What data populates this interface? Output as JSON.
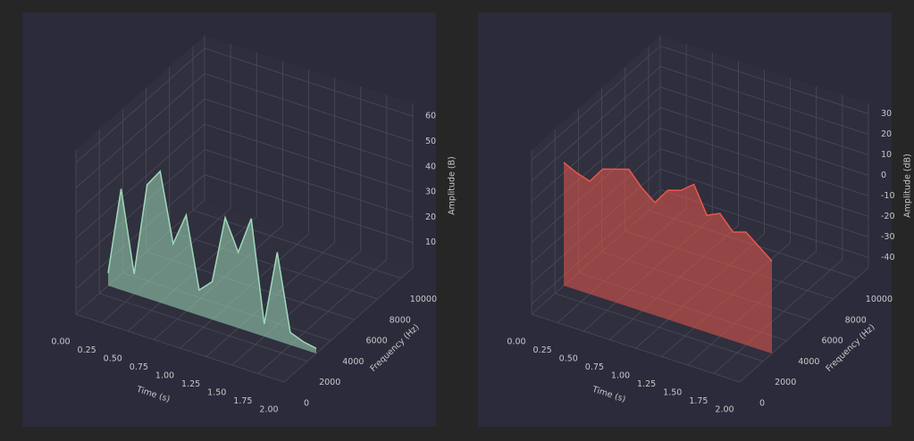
{
  "chart_data": [
    {
      "type": "surface3d",
      "xlabel": "Time (s)",
      "ylabel": "Frequency (Hz)",
      "zlabel": "Amplitude (B)",
      "xlim": [
        0,
        2
      ],
      "ylim": [
        0,
        11000
      ],
      "zlim": [
        0,
        65
      ],
      "xticks": [
        {
          "value": 0,
          "label": "0.00"
        },
        0.25,
        {
          "value": 0.5,
          "label": "0.50"
        },
        0.75,
        {
          "value": 1,
          "label": "1.00"
        },
        1.25,
        {
          "value": 1.5,
          "label": "1.50"
        },
        1.75,
        {
          "value": 2,
          "label": "2.00"
        }
      ],
      "yticks": [
        0,
        2000,
        4000,
        6000,
        8000,
        10000
      ],
      "zticks": [
        10,
        20,
        30,
        40,
        50,
        60
      ],
      "x": [
        0,
        0.125,
        0.25,
        0.375,
        0.5,
        0.625,
        0.75,
        0.875,
        1,
        1.125,
        1.25,
        1.375,
        1.5,
        1.625,
        1.75,
        1.875,
        2
      ],
      "values": [
        5,
        40,
        8,
        45,
        52,
        25,
        38,
        10,
        15,
        42,
        30,
        45,
        5,
        35,
        5,
        3,
        2
      ],
      "color": "#9fd8b8"
    },
    {
      "type": "surface3d",
      "xlabel": "Time (s)",
      "ylabel": "Frequency (Hz)",
      "zlabel": "Amplitude (dB)",
      "xlim": [
        0,
        2
      ],
      "ylim": [
        0,
        11000
      ],
      "zlim": [
        -45,
        35
      ],
      "xticks": [
        {
          "value": 0,
          "label": "0.00"
        },
        0.25,
        {
          "value": 0.5,
          "label": "0.50"
        },
        0.75,
        {
          "value": 1,
          "label": "1.00"
        },
        1.25,
        {
          "value": 1.5,
          "label": "1.50"
        },
        1.75,
        {
          "value": 2,
          "label": "2.00"
        }
      ],
      "yticks": [
        0,
        2000,
        4000,
        6000,
        8000,
        10000
      ],
      "zticks": [
        -40,
        -30,
        -20,
        -10,
        0,
        10,
        20,
        30
      ],
      "x": [
        0,
        0.125,
        0.25,
        0.375,
        0.5,
        0.625,
        0.75,
        0.875,
        1,
        1.125,
        1.25,
        1.375,
        1.5,
        1.625,
        1.75,
        1.875,
        2
      ],
      "values": [
        15,
        12,
        10,
        18,
        20,
        22,
        15,
        10,
        18,
        20,
        25,
        12,
        15,
        8,
        10,
        5,
        0
      ],
      "color": "#e8584a"
    }
  ]
}
